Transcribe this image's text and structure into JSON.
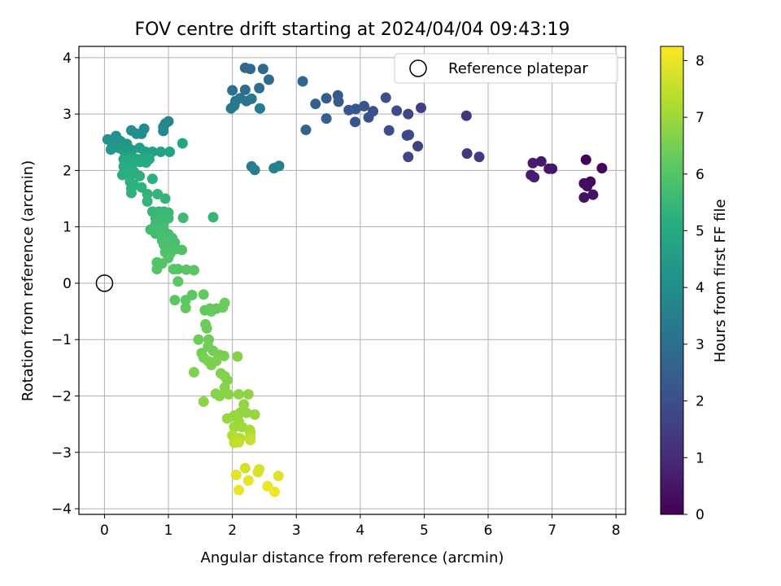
{
  "chart_data": {
    "type": "scatter",
    "title": "FOV centre drift starting at 2024/04/04 09:43:19",
    "xlabel": "Angular distance from reference (arcmin)",
    "ylabel": "Rotation from reference (arcmin)",
    "xlim": [
      -0.4,
      8.15
    ],
    "ylim": [
      -4.1,
      4.2
    ],
    "xticks": [
      0,
      1,
      2,
      3,
      4,
      5,
      6,
      7,
      8
    ],
    "yticks": [
      -4,
      -3,
      -2,
      -1,
      0,
      1,
      2,
      3,
      4
    ],
    "grid": true,
    "legend": {
      "position": "top-right",
      "entries": [
        "Reference platepar"
      ]
    },
    "reference_point": {
      "label": "Reference platepar",
      "x": 0,
      "y": 0
    },
    "colorbar": {
      "label": "Hours from first FF file",
      "colormap": "viridis",
      "range": [
        0,
        8.25
      ],
      "ticks": [
        0,
        1,
        2,
        3,
        4,
        5,
        6,
        7,
        8
      ]
    },
    "points": [
      {
        "x": 7.53,
        "y": 2.19,
        "t": 0.1
      },
      {
        "x": 7.78,
        "y": 2.04,
        "t": 0.15
      },
      {
        "x": 7.6,
        "y": 1.8,
        "t": 0.2
      },
      {
        "x": 7.5,
        "y": 1.77,
        "t": 0.25
      },
      {
        "x": 7.55,
        "y": 1.72,
        "t": 0.3
      },
      {
        "x": 7.5,
        "y": 1.52,
        "t": 0.35
      },
      {
        "x": 7.64,
        "y": 1.57,
        "t": 0.4
      },
      {
        "x": 7.0,
        "y": 2.03,
        "t": 0.5
      },
      {
        "x": 6.95,
        "y": 2.03,
        "t": 0.55
      },
      {
        "x": 6.83,
        "y": 2.16,
        "t": 0.6
      },
      {
        "x": 6.7,
        "y": 2.13,
        "t": 0.65
      },
      {
        "x": 6.67,
        "y": 1.92,
        "t": 0.7
      },
      {
        "x": 6.72,
        "y": 1.88,
        "t": 0.75
      },
      {
        "x": 5.66,
        "y": 2.97,
        "t": 1.3
      },
      {
        "x": 5.67,
        "y": 2.3,
        "t": 1.35
      },
      {
        "x": 5.86,
        "y": 2.24,
        "t": 1.4
      },
      {
        "x": 4.95,
        "y": 3.11,
        "t": 1.6
      },
      {
        "x": 4.9,
        "y": 2.43,
        "t": 1.65
      },
      {
        "x": 4.75,
        "y": 2.24,
        "t": 1.7
      },
      {
        "x": 4.76,
        "y": 2.63,
        "t": 1.75
      },
      {
        "x": 4.73,
        "y": 2.62,
        "t": 1.8
      },
      {
        "x": 4.75,
        "y": 3.0,
        "t": 1.85
      },
      {
        "x": 4.57,
        "y": 3.06,
        "t": 1.9
      },
      {
        "x": 4.45,
        "y": 2.71,
        "t": 1.95
      },
      {
        "x": 4.4,
        "y": 3.29,
        "t": 2.0
      },
      {
        "x": 4.2,
        "y": 3.05,
        "t": 2.05
      },
      {
        "x": 4.13,
        "y": 2.94,
        "t": 2.1
      },
      {
        "x": 4.06,
        "y": 3.14,
        "t": 2.15
      },
      {
        "x": 3.92,
        "y": 2.86,
        "t": 2.2
      },
      {
        "x": 3.93,
        "y": 3.09,
        "t": 2.25
      },
      {
        "x": 3.82,
        "y": 3.07,
        "t": 2.3
      },
      {
        "x": 3.65,
        "y": 3.33,
        "t": 2.35
      },
      {
        "x": 3.66,
        "y": 3.22,
        "t": 2.4
      },
      {
        "x": 3.47,
        "y": 3.28,
        "t": 2.45
      },
      {
        "x": 3.47,
        "y": 2.92,
        "t": 2.5
      },
      {
        "x": 3.3,
        "y": 3.18,
        "t": 2.55
      },
      {
        "x": 3.15,
        "y": 2.72,
        "t": 2.6
      },
      {
        "x": 3.1,
        "y": 3.58,
        "t": 2.65
      },
      {
        "x": 2.2,
        "y": 3.82,
        "t": 2.75
      },
      {
        "x": 2.28,
        "y": 3.8,
        "t": 2.8
      },
      {
        "x": 2.48,
        "y": 3.8,
        "t": 2.85
      },
      {
        "x": 2.57,
        "y": 3.61,
        "t": 2.9
      },
      {
        "x": 2.42,
        "y": 3.46,
        "t": 2.95
      },
      {
        "x": 2.2,
        "y": 3.43,
        "t": 3.0
      },
      {
        "x": 2.0,
        "y": 3.42,
        "t": 3.05
      },
      {
        "x": 2.05,
        "y": 3.23,
        "t": 3.1
      },
      {
        "x": 2.12,
        "y": 3.28,
        "t": 3.15
      },
      {
        "x": 2.22,
        "y": 3.23,
        "t": 3.2
      },
      {
        "x": 2.3,
        "y": 3.27,
        "t": 3.25
      },
      {
        "x": 1.98,
        "y": 3.1,
        "t": 3.3
      },
      {
        "x": 2.03,
        "y": 3.15,
        "t": 3.35
      },
      {
        "x": 2.43,
        "y": 3.1,
        "t": 3.4
      },
      {
        "x": 2.3,
        "y": 2.07,
        "t": 3.45
      },
      {
        "x": 2.35,
        "y": 2.01,
        "t": 3.5
      },
      {
        "x": 2.65,
        "y": 2.04,
        "t": 3.55
      },
      {
        "x": 2.73,
        "y": 2.08,
        "t": 3.6
      },
      {
        "x": 1.0,
        "y": 2.87,
        "t": 3.75
      },
      {
        "x": 0.95,
        "y": 2.83,
        "t": 3.8
      },
      {
        "x": 0.92,
        "y": 2.7,
        "t": 3.85
      },
      {
        "x": 0.92,
        "y": 2.77,
        "t": 3.9
      },
      {
        "x": 0.62,
        "y": 2.74,
        "t": 3.95
      },
      {
        "x": 0.58,
        "y": 2.65,
        "t": 4.0
      },
      {
        "x": 0.42,
        "y": 2.71,
        "t": 4.05
      },
      {
        "x": 0.5,
        "y": 2.65,
        "t": 4.1
      },
      {
        "x": 0.18,
        "y": 2.61,
        "t": 4.15
      },
      {
        "x": 0.05,
        "y": 2.55,
        "t": 4.2
      },
      {
        "x": 0.12,
        "y": 2.45,
        "t": 4.25
      },
      {
        "x": 0.25,
        "y": 2.52,
        "t": 4.3
      },
      {
        "x": 0.35,
        "y": 2.47,
        "t": 4.35
      },
      {
        "x": 0.1,
        "y": 2.37,
        "t": 4.4
      },
      {
        "x": 0.22,
        "y": 2.4,
        "t": 4.45
      },
      {
        "x": 0.3,
        "y": 2.35,
        "t": 4.5
      },
      {
        "x": 0.43,
        "y": 2.36,
        "t": 4.55
      },
      {
        "x": 0.55,
        "y": 2.4,
        "t": 4.6
      },
      {
        "x": 0.64,
        "y": 2.33,
        "t": 4.65
      },
      {
        "x": 0.75,
        "y": 2.33,
        "t": 4.7
      },
      {
        "x": 0.88,
        "y": 2.33,
        "t": 4.75
      },
      {
        "x": 1.02,
        "y": 2.33,
        "t": 4.8
      },
      {
        "x": 1.22,
        "y": 2.48,
        "t": 4.85
      },
      {
        "x": 0.3,
        "y": 2.2,
        "t": 4.9
      },
      {
        "x": 0.4,
        "y": 2.22,
        "t": 4.95
      },
      {
        "x": 0.5,
        "y": 2.2,
        "t": 5.0
      },
      {
        "x": 0.6,
        "y": 2.22,
        "t": 5.02
      },
      {
        "x": 0.7,
        "y": 2.2,
        "t": 5.04
      },
      {
        "x": 0.35,
        "y": 2.15,
        "t": 5.06
      },
      {
        "x": 0.55,
        "y": 2.15,
        "t": 5.08
      },
      {
        "x": 0.65,
        "y": 2.14,
        "t": 5.1
      },
      {
        "x": 0.42,
        "y": 2.08,
        "t": 5.12
      },
      {
        "x": 0.3,
        "y": 2.07,
        "t": 5.14
      },
      {
        "x": 0.36,
        "y": 1.98,
        "t": 5.16
      },
      {
        "x": 0.46,
        "y": 1.98,
        "t": 5.18
      },
      {
        "x": 0.28,
        "y": 1.92,
        "t": 5.2
      },
      {
        "x": 0.4,
        "y": 1.9,
        "t": 5.22
      },
      {
        "x": 0.55,
        "y": 1.9,
        "t": 5.24
      },
      {
        "x": 0.75,
        "y": 1.85,
        "t": 5.26
      },
      {
        "x": 0.4,
        "y": 1.8,
        "t": 5.28
      },
      {
        "x": 0.46,
        "y": 1.75,
        "t": 5.3
      },
      {
        "x": 0.42,
        "y": 1.68,
        "t": 5.32
      },
      {
        "x": 0.58,
        "y": 1.7,
        "t": 5.34
      },
      {
        "x": 0.42,
        "y": 1.6,
        "t": 5.36
      },
      {
        "x": 0.67,
        "y": 1.58,
        "t": 5.38
      },
      {
        "x": 0.83,
        "y": 1.58,
        "t": 5.4
      },
      {
        "x": 0.95,
        "y": 1.5,
        "t": 5.42
      },
      {
        "x": 0.67,
        "y": 1.45,
        "t": 5.44
      },
      {
        "x": 1.7,
        "y": 1.17,
        "t": 5.46
      },
      {
        "x": 0.75,
        "y": 1.27,
        "t": 5.48
      },
      {
        "x": 0.85,
        "y": 1.27,
        "t": 5.5
      },
      {
        "x": 0.93,
        "y": 1.27,
        "t": 5.52
      },
      {
        "x": 1.0,
        "y": 1.25,
        "t": 5.54
      },
      {
        "x": 0.8,
        "y": 1.15,
        "t": 5.56
      },
      {
        "x": 0.9,
        "y": 1.15,
        "t": 5.58
      },
      {
        "x": 1.0,
        "y": 1.15,
        "t": 5.6
      },
      {
        "x": 1.23,
        "y": 1.16,
        "t": 5.62
      },
      {
        "x": 0.8,
        "y": 1.05,
        "t": 5.64
      },
      {
        "x": 0.92,
        "y": 1.05,
        "t": 5.66
      },
      {
        "x": 0.72,
        "y": 0.95,
        "t": 5.68
      },
      {
        "x": 0.82,
        "y": 0.95,
        "t": 5.7
      },
      {
        "x": 0.92,
        "y": 0.95,
        "t": 5.72
      },
      {
        "x": 0.8,
        "y": 0.88,
        "t": 5.74
      },
      {
        "x": 0.9,
        "y": 0.85,
        "t": 5.76
      },
      {
        "x": 1.0,
        "y": 0.87,
        "t": 5.78
      },
      {
        "x": 1.06,
        "y": 0.8,
        "t": 5.8
      },
      {
        "x": 0.9,
        "y": 0.76,
        "t": 5.82
      },
      {
        "x": 1.1,
        "y": 0.72,
        "t": 5.84
      },
      {
        "x": 0.93,
        "y": 0.68,
        "t": 5.86
      },
      {
        "x": 1.0,
        "y": 0.65,
        "t": 5.88
      },
      {
        "x": 1.1,
        "y": 0.6,
        "t": 5.9
      },
      {
        "x": 1.21,
        "y": 0.59,
        "t": 5.92
      },
      {
        "x": 0.95,
        "y": 0.55,
        "t": 5.94
      },
      {
        "x": 1.03,
        "y": 0.53,
        "t": 5.96
      },
      {
        "x": 1.0,
        "y": 0.45,
        "t": 5.98
      },
      {
        "x": 0.82,
        "y": 0.37,
        "t": 6.0
      },
      {
        "x": 0.9,
        "y": 0.35,
        "t": 6.02
      },
      {
        "x": 0.82,
        "y": 0.25,
        "t": 6.04
      },
      {
        "x": 1.08,
        "y": 0.25,
        "t": 6.06
      },
      {
        "x": 1.15,
        "y": 0.25,
        "t": 6.08
      },
      {
        "x": 1.28,
        "y": 0.24,
        "t": 6.1
      },
      {
        "x": 1.4,
        "y": 0.23,
        "t": 6.12
      },
      {
        "x": 1.15,
        "y": 0.03,
        "t": 6.14
      },
      {
        "x": 1.1,
        "y": -0.3,
        "t": 6.16
      },
      {
        "x": 1.27,
        "y": -0.3,
        "t": 6.18
      },
      {
        "x": 1.37,
        "y": -0.21,
        "t": 6.2
      },
      {
        "x": 1.27,
        "y": -0.44,
        "t": 6.22
      },
      {
        "x": 1.55,
        "y": -0.2,
        "t": 6.24
      },
      {
        "x": 1.57,
        "y": -0.48,
        "t": 6.26
      },
      {
        "x": 1.65,
        "y": -0.45,
        "t": 6.28
      },
      {
        "x": 1.75,
        "y": -0.45,
        "t": 6.3
      },
      {
        "x": 1.67,
        "y": -0.5,
        "t": 6.32
      },
      {
        "x": 1.85,
        "y": -0.43,
        "t": 6.34
      },
      {
        "x": 1.88,
        "y": -0.35,
        "t": 6.36
      },
      {
        "x": 1.58,
        "y": -0.73,
        "t": 6.38
      },
      {
        "x": 1.6,
        "y": -0.8,
        "t": 6.4
      },
      {
        "x": 1.47,
        "y": -1.0,
        "t": 6.42
      },
      {
        "x": 1.63,
        "y": -1.0,
        "t": 6.44
      },
      {
        "x": 1.62,
        "y": -1.12,
        "t": 6.46
      },
      {
        "x": 1.52,
        "y": -1.24,
        "t": 6.48
      },
      {
        "x": 1.7,
        "y": -1.2,
        "t": 6.5
      },
      {
        "x": 1.8,
        "y": -1.27,
        "t": 6.52
      },
      {
        "x": 1.87,
        "y": -1.29,
        "t": 6.54
      },
      {
        "x": 1.55,
        "y": -1.32,
        "t": 6.56
      },
      {
        "x": 1.62,
        "y": -1.38,
        "t": 6.58
      },
      {
        "x": 1.67,
        "y": -1.45,
        "t": 6.6
      },
      {
        "x": 1.75,
        "y": -1.38,
        "t": 6.62
      },
      {
        "x": 1.4,
        "y": -1.58,
        "t": 6.64
      },
      {
        "x": 1.82,
        "y": -1.6,
        "t": 6.66
      },
      {
        "x": 1.88,
        "y": -1.65,
        "t": 6.68
      },
      {
        "x": 1.92,
        "y": -1.72,
        "t": 6.7
      },
      {
        "x": 2.08,
        "y": -1.3,
        "t": 6.72
      },
      {
        "x": 1.88,
        "y": -1.85,
        "t": 6.74
      },
      {
        "x": 1.74,
        "y": -1.96,
        "t": 6.76
      },
      {
        "x": 1.8,
        "y": -2.0,
        "t": 6.78
      },
      {
        "x": 1.94,
        "y": -1.97,
        "t": 6.8
      },
      {
        "x": 1.55,
        "y": -2.1,
        "t": 6.82
      },
      {
        "x": 2.1,
        "y": -1.97,
        "t": 6.84
      },
      {
        "x": 2.25,
        "y": -1.97,
        "t": 6.86
      },
      {
        "x": 2.18,
        "y": -2.15,
        "t": 6.88
      },
      {
        "x": 2.12,
        "y": -2.3,
        "t": 6.9
      },
      {
        "x": 2.22,
        "y": -2.3,
        "t": 6.92
      },
      {
        "x": 2.03,
        "y": -2.35,
        "t": 6.94
      },
      {
        "x": 2.35,
        "y": -2.33,
        "t": 6.96
      },
      {
        "x": 1.92,
        "y": -2.4,
        "t": 6.98
      },
      {
        "x": 2.1,
        "y": -2.45,
        "t": 7.0
      },
      {
        "x": 2.03,
        "y": -2.55,
        "t": 7.05
      },
      {
        "x": 2.15,
        "y": -2.55,
        "t": 7.1
      },
      {
        "x": 2.27,
        "y": -2.6,
        "t": 7.15
      },
      {
        "x": 2.28,
        "y": -2.65,
        "t": 7.2
      },
      {
        "x": 2.0,
        "y": -2.7,
        "t": 7.25
      },
      {
        "x": 2.06,
        "y": -2.75,
        "t": 7.3
      },
      {
        "x": 2.12,
        "y": -2.75,
        "t": 7.35
      },
      {
        "x": 2.28,
        "y": -2.73,
        "t": 7.4
      },
      {
        "x": 2.03,
        "y": -2.83,
        "t": 7.45
      },
      {
        "x": 2.1,
        "y": -2.82,
        "t": 7.5
      },
      {
        "x": 2.28,
        "y": -2.78,
        "t": 7.55
      },
      {
        "x": 2.2,
        "y": -3.28,
        "t": 7.7
      },
      {
        "x": 2.42,
        "y": -3.3,
        "t": 7.75
      },
      {
        "x": 2.4,
        "y": -3.35,
        "t": 7.8
      },
      {
        "x": 2.72,
        "y": -3.42,
        "t": 7.85
      },
      {
        "x": 2.06,
        "y": -3.4,
        "t": 7.9
      },
      {
        "x": 2.25,
        "y": -3.5,
        "t": 7.95
      },
      {
        "x": 2.1,
        "y": -3.67,
        "t": 8.0
      },
      {
        "x": 2.55,
        "y": -3.6,
        "t": 8.05
      },
      {
        "x": 2.66,
        "y": -3.7,
        "t": 8.1
      }
    ]
  }
}
